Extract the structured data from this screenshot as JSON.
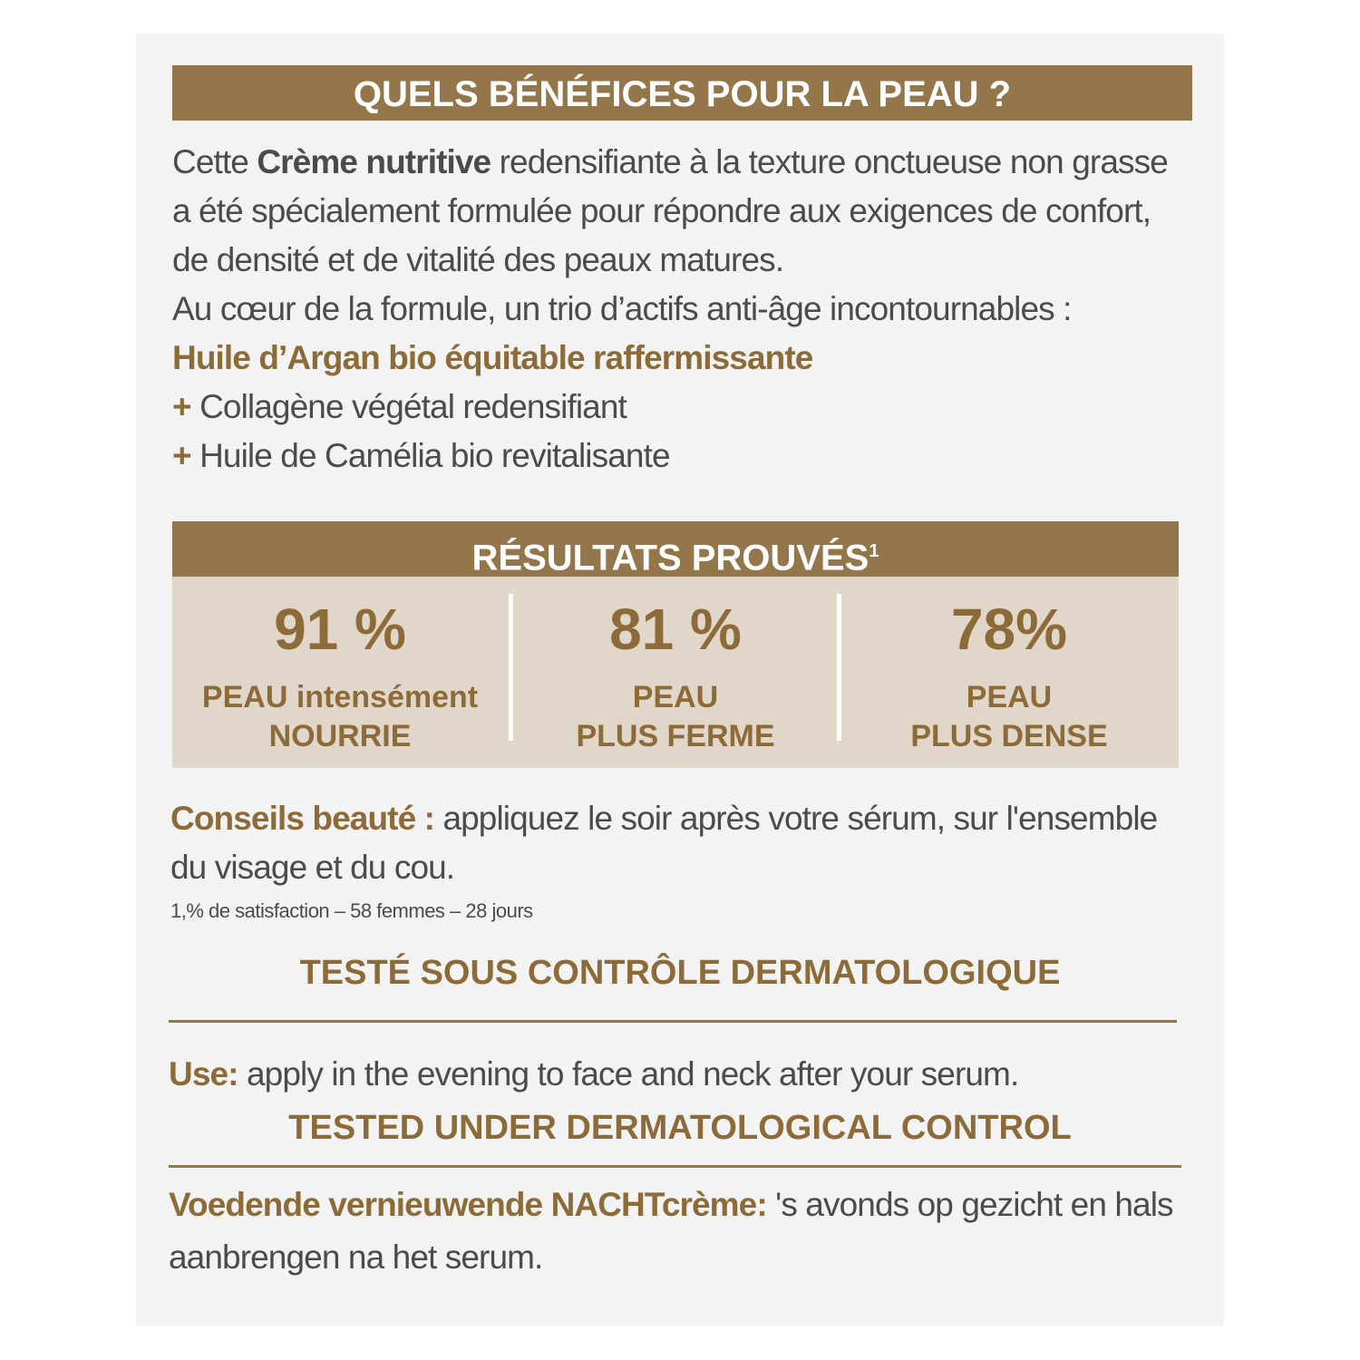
{
  "benefits": {
    "title": "QUELS BÉNÉFICES POUR LA PEAU ?",
    "intro": {
      "before": "Cette ",
      "highlight": "Crème nutritive",
      "after": " redensifiante à la texture onctueuse non grasse a été spécialement formulée pour répondre aux exigences de confort, de densité et de vitalité des peaux matures."
    },
    "formula": "Au cœur de la formule, un trio d’actifs anti-âge incontournables :",
    "key_active": "Huile d’Argan bio équitable raffermissante",
    "actives": [
      {
        "marker": "+",
        "text": "Collagène végétal redensifiant"
      },
      {
        "marker": "+",
        "text": "Huile de Camélia bio revitalisante"
      }
    ]
  },
  "results": {
    "title": "RÉSULTATS PROUVÉS",
    "footnote_mark": "1",
    "stats": [
      {
        "value": "91 %",
        "lines": [
          "PEAU intensément",
          "NOURRIE"
        ]
      },
      {
        "value": "81 %",
        "lines": [
          "PEAU",
          "PLUS FERME"
        ]
      },
      {
        "value": "78%",
        "lines": [
          "PEAU",
          "PLUS DENSE"
        ]
      }
    ]
  },
  "advice": {
    "label": "Conseils beauté :",
    "text": " appliquez le soir après votre sérum, sur l'ensemble du visage et du cou."
  },
  "footnote": "1,% de satisfaction – 58 femmes – 28 jours",
  "tested_fr": "TESTÉ SOUS CONTRÔLE DERMATOLOGIQUE",
  "english": {
    "label": "Use:",
    "text": " apply in the evening to face and neck after your serum.",
    "tested": "TESTED UNDER DERMATOLOGICAL CONTROL"
  },
  "dutch": {
    "label": "Voedende vernieuwende NACHTcrème:",
    "text": " 's avonds op gezicht en hals aanbrengen na het serum."
  }
}
